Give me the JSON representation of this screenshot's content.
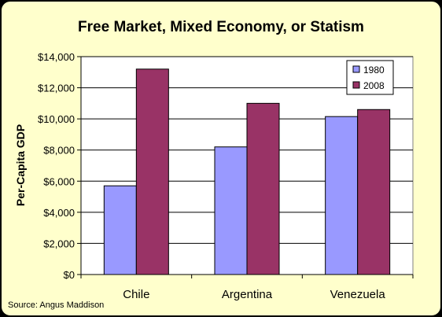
{
  "colors": {
    "background": "#FFFFCC",
    "border": "#000000",
    "plot_area": "#FFFFFF",
    "series_1980": "#9999FF",
    "series_2008": "#993366",
    "text": "#000000"
  },
  "source_note": "Source: Angus Maddison",
  "chart_data": {
    "type": "bar",
    "title": "Free Market, Mixed Economy, or Statism",
    "xlabel": "",
    "ylabel": "Per-Capita GDP",
    "categories": [
      "Chile",
      "Argentina",
      "Venezuela"
    ],
    "series": [
      {
        "name": "1980",
        "values": [
          5700,
          8200,
          10150
        ]
      },
      {
        "name": "2008",
        "values": [
          13200,
          11000,
          10600
        ]
      }
    ],
    "ylim": [
      0,
      14000
    ],
    "yticks": [
      0,
      2000,
      4000,
      6000,
      8000,
      10000,
      12000,
      14000
    ],
    "ytick_labels": [
      "$0",
      "$2,000",
      "$4,000",
      "$6,000",
      "$8,000",
      "$10,000",
      "$12,000",
      "$14,000"
    ],
    "grid": true,
    "legend_position": "top-right"
  }
}
